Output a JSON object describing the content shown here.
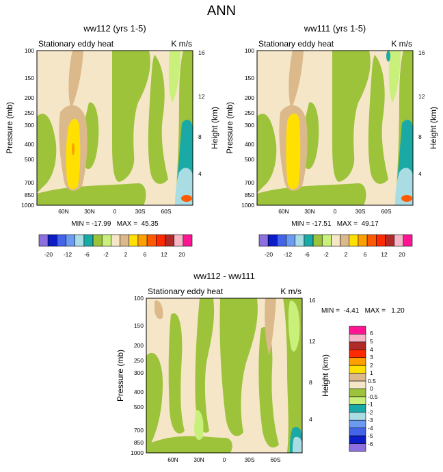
{
  "figure_title": "ANN",
  "colors": {
    "bg_field": "#f5e6c8",
    "pos_lv1": "#dcb98a",
    "neg_lv1": "#9dc33b",
    "neg_lv2": "#c9f07a",
    "hot": "#ffe000",
    "hotter": "#ff9f00",
    "cold": "#1ba9a6",
    "colder": "#a9dce3"
  },
  "chart_data": [
    {
      "type": "contour",
      "title": "ww112 (yrs 1-5)",
      "variable_label": "Stationary eddy heat",
      "units_label": "K m/s",
      "ylabel": "Pressure (mb)",
      "ylabel_right": "Height (km)",
      "x_ticks": [
        "60N",
        "30N",
        "0",
        "30S",
        "60S"
      ],
      "y_ticks": [
        "100",
        "150",
        "200",
        "250",
        "300",
        "400",
        "500",
        "700",
        "850",
        "1000"
      ],
      "y_ticks_right": [
        "16",
        "12",
        "8",
        "4"
      ],
      "min_max_text": "MIN = -17.99   MAX =  45.35",
      "min": -17.99,
      "max": 45.35,
      "colorbar_labels": [
        "-20",
        "-12",
        "-6",
        "-2",
        "2",
        "6",
        "12",
        "20"
      ],
      "colorbar_colors": [
        "#8d6fe0",
        "#0b1cc8",
        "#4363e8",
        "#6b9bf0",
        "#a9dce3",
        "#1ba9a6",
        "#9dc33b",
        "#c9f07a",
        "#f5e6c8",
        "#dcb98a",
        "#ffe000",
        "#ff9f00",
        "#ff5a00",
        "#ff2a00",
        "#b02a2a",
        "#f7b6c8",
        "#ff1493"
      ]
    },
    {
      "type": "contour",
      "title": "ww111 (yrs 1-5)",
      "variable_label": "Stationary eddy heat",
      "units_label": "K m/s",
      "ylabel": "Pressure (mb)",
      "ylabel_right": "Height (km)",
      "x_ticks": [
        "60N",
        "30N",
        "0",
        "30S",
        "60S"
      ],
      "y_ticks": [
        "100",
        "150",
        "200",
        "250",
        "300",
        "400",
        "500",
        "700",
        "850",
        "1000"
      ],
      "y_ticks_right": [
        "16",
        "12",
        "8",
        "4"
      ],
      "min_max_text": "MIN = -17.51   MAX =  49.17",
      "min": -17.51,
      "max": 49.17,
      "colorbar_labels": [
        "-20",
        "-12",
        "-6",
        "-2",
        "2",
        "6",
        "12",
        "20"
      ],
      "colorbar_colors": [
        "#8d6fe0",
        "#0b1cc8",
        "#4363e8",
        "#6b9bf0",
        "#a9dce3",
        "#1ba9a6",
        "#9dc33b",
        "#c9f07a",
        "#f5e6c8",
        "#dcb98a",
        "#ffe000",
        "#ff9f00",
        "#ff5a00",
        "#ff2a00",
        "#b02a2a",
        "#f7b6c8",
        "#ff1493"
      ]
    },
    {
      "type": "contour",
      "title": "ww112 - ww111",
      "variable_label": "Stationary eddy heat",
      "units_label": "K m/s",
      "ylabel": "Pressure (mb)",
      "ylabel_right": "Height (km)",
      "x_ticks": [
        "60N",
        "30N",
        "0",
        "30S",
        "60S"
      ],
      "y_ticks": [
        "100",
        "150",
        "200",
        "250",
        "300",
        "400",
        "500",
        "700",
        "850",
        "1000"
      ],
      "y_ticks_right": [
        "16",
        "12",
        "8",
        "4"
      ],
      "min_max_text": "MIN =  -4.41   MAX =   1.20",
      "min": -4.41,
      "max": 1.2,
      "colorbar_labels": [
        "6",
        "5",
        "4",
        "3",
        "2",
        "1",
        "0.5",
        "0",
        "-0.5",
        "-1",
        "-2",
        "-3",
        "-4",
        "-5",
        "-6"
      ],
      "colorbar_colors": [
        "#ff1493",
        "#f7b6c8",
        "#b02a2a",
        "#ff2a00",
        "#ff9f00",
        "#ffe000",
        "#dcb98a",
        "#f5e6c8",
        "#9dc33b",
        "#c9f07a",
        "#1ba9a6",
        "#a9dce3",
        "#6b9bf0",
        "#4363e8",
        "#0b1cc8",
        "#8d6fe0"
      ]
    }
  ]
}
